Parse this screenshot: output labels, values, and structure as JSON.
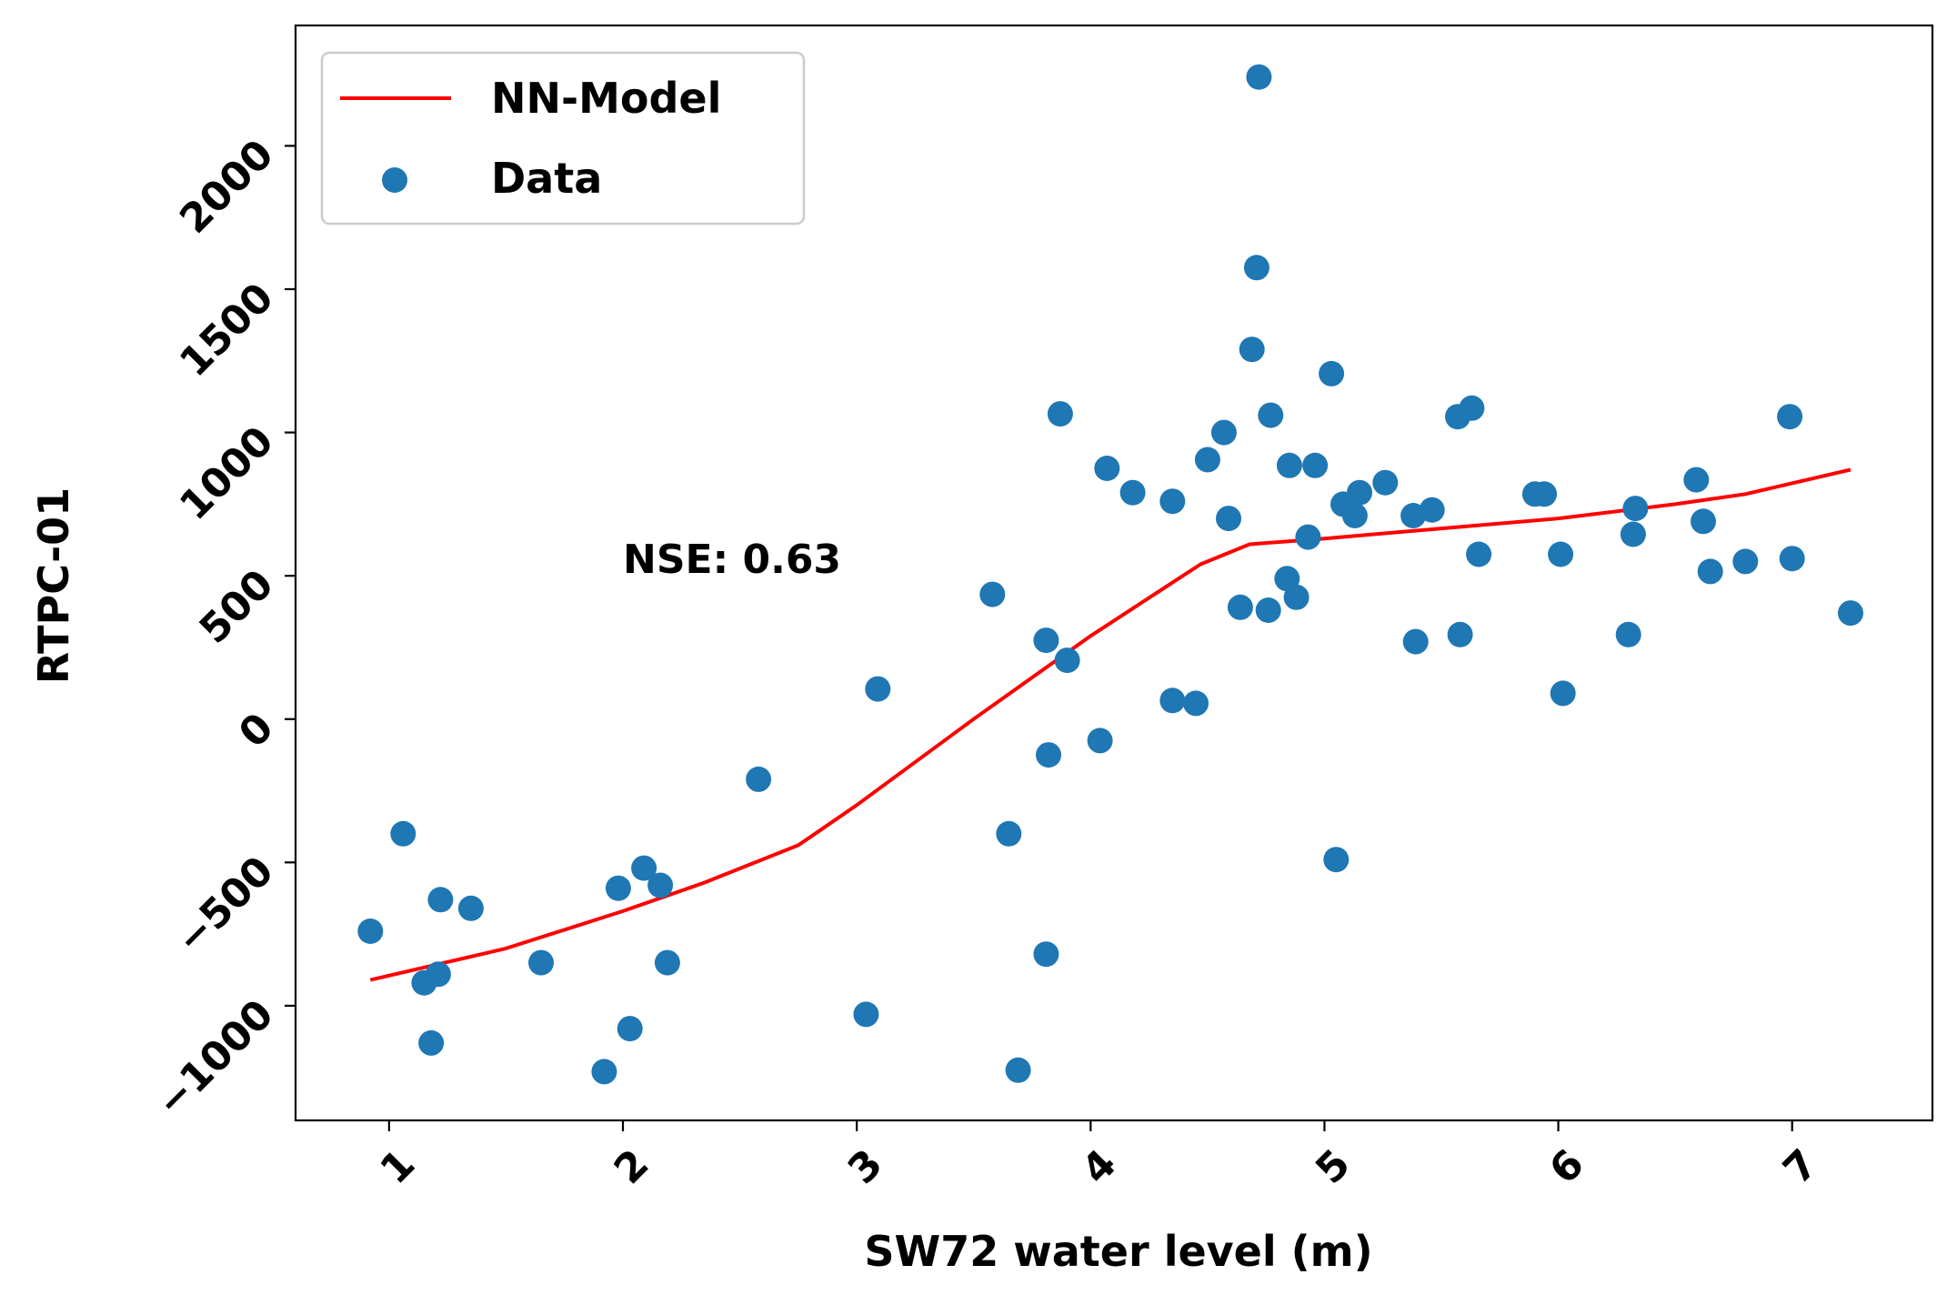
{
  "chart_data": {
    "type": "scatter",
    "title": "",
    "xlabel": "SW72 water level (m)",
    "ylabel": "RTPC-01",
    "xlim": [
      0.6,
      7.6
    ],
    "ylim": [
      -1400,
      2420
    ],
    "x_ticks": [
      1,
      2,
      3,
      4,
      5,
      6,
      7
    ],
    "x_tick_labels": [
      "1",
      "2",
      "3",
      "4",
      "5",
      "6",
      "7"
    ],
    "y_ticks": [
      -1000,
      -500,
      0,
      500,
      1000,
      1500,
      2000
    ],
    "y_tick_labels": [
      "−1000",
      "−500",
      "0",
      "500",
      "1000",
      "1500",
      "2000"
    ],
    "grid": false,
    "legend": {
      "position": "top-left",
      "entries": [
        {
          "label": "NN-Model",
          "kind": "line",
          "color": "#ff0000"
        },
        {
          "label": "Data",
          "kind": "marker",
          "color": "#1f77b4"
        }
      ]
    },
    "annotation": {
      "text": "NSE: 0.63",
      "x": 2.0,
      "y": 560
    },
    "series": [
      {
        "name": "NN-Model",
        "kind": "line",
        "color": "#ff0000",
        "points": [
          [
            0.92,
            -910
          ],
          [
            1.5,
            -800
          ],
          [
            2.0,
            -670
          ],
          [
            2.35,
            -570
          ],
          [
            2.75,
            -440
          ],
          [
            3.0,
            -300
          ],
          [
            3.5,
            0
          ],
          [
            4.0,
            290
          ],
          [
            4.47,
            540
          ],
          [
            4.68,
            610
          ],
          [
            5.0,
            630
          ],
          [
            5.5,
            665
          ],
          [
            6.0,
            700
          ],
          [
            6.5,
            750
          ],
          [
            6.8,
            785
          ],
          [
            7.25,
            870
          ]
        ]
      },
      {
        "name": "Data",
        "kind": "scatter",
        "color": "#1f77b4",
        "points": [
          [
            0.92,
            -740
          ],
          [
            1.06,
            -400
          ],
          [
            1.15,
            -920
          ],
          [
            1.18,
            -1130
          ],
          [
            1.21,
            -890
          ],
          [
            1.22,
            -630
          ],
          [
            1.35,
            -660
          ],
          [
            1.65,
            -850
          ],
          [
            1.92,
            -1230
          ],
          [
            1.98,
            -590
          ],
          [
            2.03,
            -1080
          ],
          [
            2.09,
            -520
          ],
          [
            2.16,
            -580
          ],
          [
            2.19,
            -850
          ],
          [
            2.58,
            -210
          ],
          [
            3.04,
            -1030
          ],
          [
            3.09,
            105
          ],
          [
            3.58,
            435
          ],
          [
            3.65,
            -400
          ],
          [
            3.69,
            -1225
          ],
          [
            3.81,
            275
          ],
          [
            3.81,
            -820
          ],
          [
            3.82,
            -125
          ],
          [
            3.87,
            1065
          ],
          [
            3.9,
            205
          ],
          [
            4.04,
            -75
          ],
          [
            4.07,
            875
          ],
          [
            4.18,
            790
          ],
          [
            4.35,
            760
          ],
          [
            4.35,
            65
          ],
          [
            4.45,
            55
          ],
          [
            4.5,
            905
          ],
          [
            4.57,
            1000
          ],
          [
            4.59,
            700
          ],
          [
            4.64,
            390
          ],
          [
            4.69,
            1290
          ],
          [
            4.71,
            1575
          ],
          [
            4.72,
            2240
          ],
          [
            4.76,
            380
          ],
          [
            4.77,
            1060
          ],
          [
            4.84,
            490
          ],
          [
            4.85,
            885
          ],
          [
            4.88,
            425
          ],
          [
            4.93,
            635
          ],
          [
            4.96,
            885
          ],
          [
            5.03,
            1205
          ],
          [
            5.05,
            -490
          ],
          [
            5.08,
            750
          ],
          [
            5.13,
            710
          ],
          [
            5.15,
            790
          ],
          [
            5.26,
            825
          ],
          [
            5.38,
            710
          ],
          [
            5.39,
            270
          ],
          [
            5.46,
            730
          ],
          [
            5.57,
            1055
          ],
          [
            5.58,
            295
          ],
          [
            5.63,
            1085
          ],
          [
            5.66,
            575
          ],
          [
            5.9,
            785
          ],
          [
            5.94,
            785
          ],
          [
            6.01,
            575
          ],
          [
            6.02,
            90
          ],
          [
            6.3,
            295
          ],
          [
            6.32,
            645
          ],
          [
            6.33,
            735
          ],
          [
            6.59,
            835
          ],
          [
            6.62,
            690
          ],
          [
            6.65,
            515
          ],
          [
            6.8,
            550
          ],
          [
            6.99,
            1055
          ],
          [
            7.0,
            560
          ],
          [
            7.25,
            370
          ]
        ]
      }
    ]
  }
}
